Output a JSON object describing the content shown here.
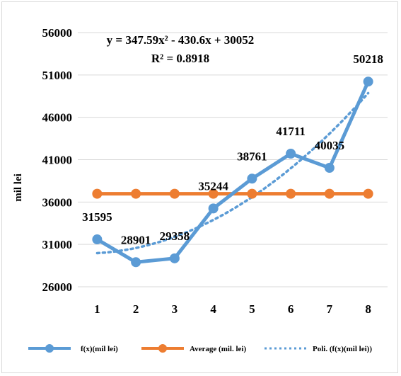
{
  "chart_data": {
    "type": "line",
    "x": [
      1,
      2,
      3,
      4,
      5,
      6,
      7,
      8
    ],
    "ylabel": "mil lei",
    "ylim": [
      26000,
      56000
    ],
    "yticks": [
      26000,
      31000,
      36000,
      41000,
      46000,
      51000,
      56000
    ],
    "grid": "horizontal",
    "legend_position": "bottom",
    "series": [
      {
        "name": "f(x)(mil lei)",
        "color": "#5b9bd5",
        "values": [
          31595,
          28901,
          29358,
          35244,
          38761,
          41711,
          40035,
          50218
        ],
        "data_labels": [
          "31595",
          "28901",
          "29358",
          "35244",
          "38761",
          "41711",
          "40035",
          "50218"
        ]
      },
      {
        "name": "Average (mil. lei)",
        "color": "#ed7d31",
        "values": [
          36978,
          36978,
          36978,
          36978,
          36978,
          36978,
          36978,
          36978
        ]
      },
      {
        "name": "Poli. (f(x)(mil lei))",
        "color": "#5b9bd5",
        "dashed": true,
        "trendline": {
          "a": 347.59,
          "b": -430.6,
          "c": 30052
        }
      }
    ],
    "annotations": {
      "equation": "y = 347.59x² - 430.6x + 30052",
      "r_squared": "R² = 0.8918"
    }
  }
}
